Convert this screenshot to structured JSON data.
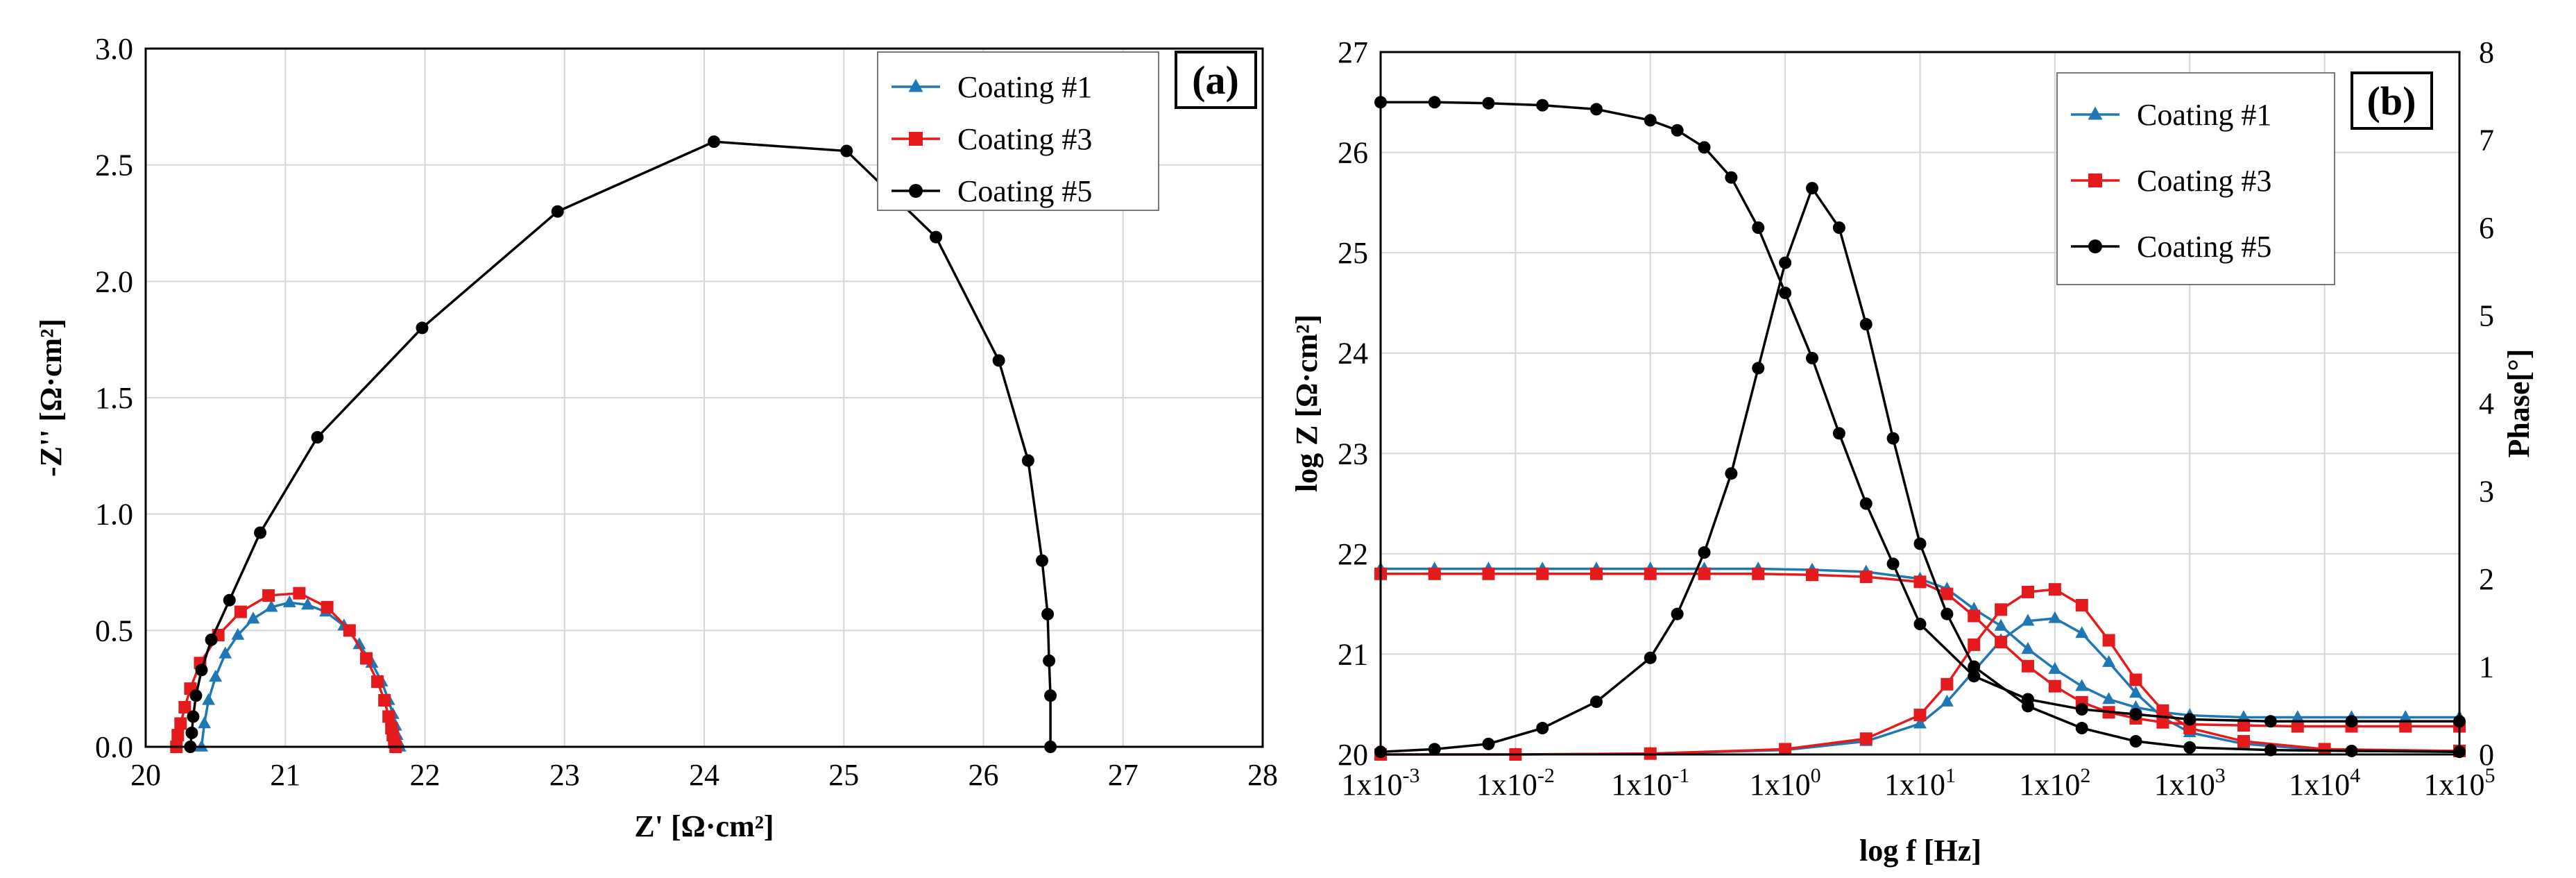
{
  "colors": {
    "coating1": "#1f77b4",
    "coating3": "#e41a1c",
    "coating5": "#000000"
  },
  "chart_data": [
    {
      "panel": "(a)",
      "type": "scatter",
      "title": "",
      "xlabel": "Z' [Ω·cm²]",
      "ylabel": "-Z'' [Ω·cm²]",
      "xlim": [
        20,
        28
      ],
      "ylim": [
        0,
        3.0
      ],
      "xticks": [
        "20",
        "21",
        "22",
        "23",
        "24",
        "25",
        "26",
        "27",
        "28"
      ],
      "yticks": [
        "0.0",
        "0.5",
        "1.0",
        "1.5",
        "2.0",
        "2.5",
        "3.0"
      ],
      "legend": [
        "Coating #1",
        "Coating #3",
        "Coating #5"
      ],
      "series": [
        {
          "name": "Coating #1",
          "marker": "triangle",
          "color": "#1f77b4",
          "x": [
            20.4,
            20.42,
            20.45,
            20.5,
            20.57,
            20.66,
            20.77,
            20.9,
            21.03,
            21.16,
            21.29,
            21.42,
            21.53,
            21.62,
            21.69,
            21.74,
            21.77,
            21.79,
            21.8,
            21.81,
            21.82
          ],
          "y": [
            0.0,
            0.1,
            0.2,
            0.3,
            0.4,
            0.48,
            0.55,
            0.6,
            0.62,
            0.61,
            0.58,
            0.52,
            0.44,
            0.36,
            0.28,
            0.2,
            0.14,
            0.09,
            0.05,
            0.02,
            0.0
          ]
        },
        {
          "name": "Coating #3",
          "marker": "square",
          "color": "#e41a1c",
          "x": [
            20.22,
            20.23,
            20.25,
            20.28,
            20.32,
            20.39,
            20.52,
            20.68,
            20.88,
            21.1,
            21.3,
            21.46,
            21.58,
            21.66,
            21.71,
            21.74,
            21.76,
            21.77,
            21.78,
            21.79
          ],
          "y": [
            0.0,
            0.05,
            0.1,
            0.17,
            0.25,
            0.36,
            0.48,
            0.58,
            0.65,
            0.66,
            0.6,
            0.5,
            0.38,
            0.28,
            0.2,
            0.13,
            0.08,
            0.05,
            0.02,
            0.0
          ]
        },
        {
          "name": "Coating #5",
          "marker": "circle",
          "color": "#000000",
          "x": [
            20.32,
            20.33,
            20.34,
            20.36,
            20.4,
            20.47,
            20.6,
            20.82,
            21.23,
            21.98,
            22.95,
            24.07,
            25.02,
            25.66,
            26.11,
            26.32,
            26.42,
            26.46,
            26.47,
            26.48,
            26.48
          ],
          "y": [
            0.0,
            0.06,
            0.13,
            0.22,
            0.33,
            0.46,
            0.63,
            0.92,
            1.33,
            1.8,
            2.3,
            2.6,
            2.56,
            2.19,
            1.66,
            1.23,
            0.8,
            0.57,
            0.37,
            0.22,
            0.0
          ]
        }
      ]
    },
    {
      "panel": "(b)",
      "type": "line",
      "title": "",
      "xlabel": "log f [Hz]",
      "ylabel": "log Z [Ω·cm²]",
      "ylabel_right": "Phase[°]",
      "xlim_log10": [
        -3,
        5
      ],
      "ylim": [
        20,
        27
      ],
      "ylim_right": [
        0,
        8
      ],
      "xticks": [
        "1x10-3",
        "1x10-2",
        "1x10-1",
        "1x100",
        "1x101",
        "1x102",
        "1x103",
        "1x104",
        "1x105"
      ],
      "yticks": [
        "20",
        "21",
        "22",
        "23",
        "24",
        "25",
        "26",
        "27"
      ],
      "yticks_right": [
        "0",
        "1",
        "2",
        "3",
        "4",
        "5",
        "6",
        "7",
        "8"
      ],
      "legend": [
        "Coating #1",
        "Coating #3",
        "Coating #5"
      ],
      "series": [
        {
          "name": "Coating #1",
          "quantity": "log Z",
          "marker": "triangle",
          "color": "#1f77b4",
          "log_f": [
            -3.0,
            -2.6,
            -2.2,
            -1.8,
            -1.4,
            -1.0,
            -0.6,
            -0.2,
            0.2,
            0.6,
            1.0,
            1.2,
            1.4,
            1.6,
            1.8,
            2.0,
            2.2,
            2.4,
            2.6,
            2.8,
            3.0,
            3.4,
            3.8,
            4.2,
            4.6,
            5.0
          ],
          "values": [
            21.85,
            21.85,
            21.85,
            21.85,
            21.85,
            21.85,
            21.85,
            21.85,
            21.84,
            21.82,
            21.75,
            21.65,
            21.45,
            21.28,
            21.05,
            20.85,
            20.68,
            20.55,
            20.47,
            20.42,
            20.39,
            20.37,
            20.37,
            20.37,
            20.37,
            20.37
          ]
        },
        {
          "name": "Coating #1",
          "quantity": "Phase",
          "marker": "triangle",
          "color": "#1f77b4",
          "log_f": [
            -3.0,
            -2.0,
            -1.0,
            0.0,
            0.6,
            1.0,
            1.2,
            1.4,
            1.6,
            1.8,
            2.0,
            2.2,
            2.4,
            2.6,
            2.8,
            3.0,
            3.4,
            4.0,
            5.0
          ],
          "values": [
            0.0,
            0.0,
            0.01,
            0.05,
            0.15,
            0.35,
            0.6,
            0.95,
            1.3,
            1.52,
            1.55,
            1.38,
            1.05,
            0.7,
            0.42,
            0.25,
            0.12,
            0.05,
            0.03
          ]
        },
        {
          "name": "Coating #3",
          "quantity": "log Z",
          "marker": "square",
          "color": "#e41a1c",
          "log_f": [
            -3.0,
            -2.6,
            -2.2,
            -1.8,
            -1.4,
            -1.0,
            -0.6,
            -0.2,
            0.2,
            0.6,
            1.0,
            1.2,
            1.4,
            1.6,
            1.8,
            2.0,
            2.2,
            2.4,
            2.6,
            2.8,
            3.0,
            3.4,
            3.8,
            4.2,
            4.6,
            5.0
          ],
          "values": [
            21.8,
            21.8,
            21.8,
            21.8,
            21.8,
            21.8,
            21.8,
            21.8,
            21.79,
            21.77,
            21.72,
            21.6,
            21.38,
            21.12,
            20.88,
            20.68,
            20.52,
            20.42,
            20.36,
            20.32,
            20.3,
            20.29,
            20.28,
            20.28,
            20.28,
            20.28
          ]
        },
        {
          "name": "Coating #3",
          "quantity": "Phase",
          "marker": "square",
          "color": "#e41a1c",
          "log_f": [
            -3.0,
            -2.0,
            -1.0,
            0.0,
            0.6,
            1.0,
            1.2,
            1.4,
            1.6,
            1.8,
            2.0,
            2.2,
            2.4,
            2.6,
            2.8,
            3.0,
            3.4,
            4.0,
            5.0
          ],
          "values": [
            0.0,
            0.0,
            0.01,
            0.06,
            0.18,
            0.45,
            0.8,
            1.25,
            1.65,
            1.85,
            1.88,
            1.7,
            1.3,
            0.85,
            0.5,
            0.3,
            0.15,
            0.06,
            0.04
          ]
        },
        {
          "name": "Coating #5",
          "quantity": "log Z",
          "marker": "circle",
          "color": "#000000",
          "log_f": [
            -3.0,
            -2.6,
            -2.2,
            -1.8,
            -1.4,
            -1.0,
            -0.8,
            -0.6,
            -0.4,
            -0.2,
            0.0,
            0.2,
            0.4,
            0.6,
            0.8,
            1.0,
            1.4,
            1.8,
            2.2,
            2.6,
            3.0,
            3.6,
            4.2,
            5.0
          ],
          "values": [
            26.5,
            26.5,
            26.49,
            26.47,
            26.43,
            26.32,
            26.22,
            26.05,
            25.75,
            25.25,
            24.6,
            23.95,
            23.2,
            22.5,
            21.9,
            21.3,
            20.78,
            20.55,
            20.45,
            20.4,
            20.35,
            20.33,
            20.33,
            20.33
          ]
        },
        {
          "name": "Coating #5",
          "quantity": "Phase",
          "marker": "circle",
          "color": "#000000",
          "log_f": [
            -3.0,
            -2.6,
            -2.2,
            -1.8,
            -1.4,
            -1.0,
            -0.8,
            -0.6,
            -0.4,
            -0.2,
            0.0,
            0.2,
            0.4,
            0.6,
            0.8,
            1.0,
            1.2,
            1.4,
            1.8,
            2.2,
            2.6,
            3.0,
            3.6,
            4.2,
            5.0
          ],
          "values": [
            0.03,
            0.06,
            0.12,
            0.3,
            0.6,
            1.1,
            1.6,
            2.3,
            3.2,
            4.4,
            5.6,
            6.45,
            6.0,
            4.9,
            3.6,
            2.4,
            1.6,
            1.0,
            0.55,
            0.3,
            0.15,
            0.08,
            0.05,
            0.04,
            0.03
          ]
        }
      ]
    }
  ]
}
